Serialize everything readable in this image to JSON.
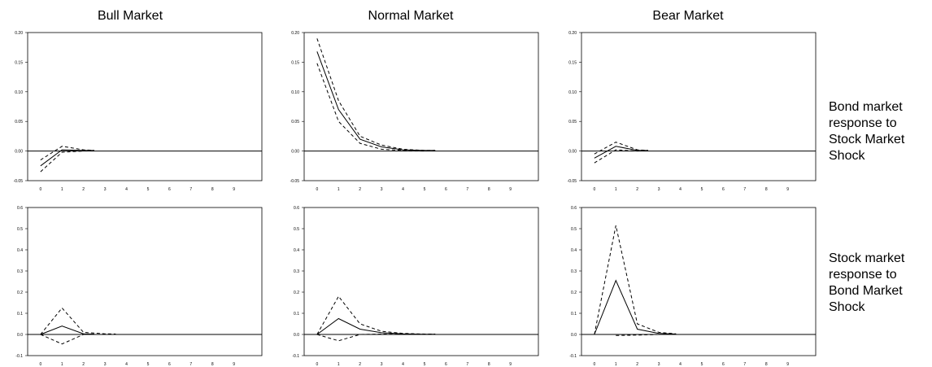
{
  "column_titles": [
    "Bull Market",
    "Normal Market",
    "Bear Market"
  ],
  "row_labels": [
    "Bond market\nresponse to\nStock Market\nShock",
    "Stock market\nresponse to\nBond Market\nShock"
  ],
  "chart_data": [
    {
      "type": "line",
      "title": "Bull Market",
      "row": 0,
      "col": 0,
      "x": [
        0,
        1,
        2,
        3,
        4,
        5,
        6,
        7,
        8,
        9
      ],
      "xlim": [
        -0.6,
        10.3
      ],
      "ylim": [
        -0.05,
        0.2
      ],
      "yticks": [
        -0.05,
        0.0,
        0.05,
        0.1,
        0.15,
        0.2
      ],
      "ytick_decimals": 2,
      "series": [
        {
          "style": "solid",
          "x": [
            0,
            1,
            2,
            2.5
          ],
          "values": [
            -0.025,
            0.002,
            0.001,
            0.001
          ]
        },
        {
          "style": "dashed",
          "x": [
            0,
            1,
            2,
            2.5
          ],
          "values": [
            -0.015,
            0.008,
            0.002,
            0.001
          ]
        },
        {
          "style": "dashed",
          "x": [
            0,
            1,
            2,
            2.5
          ],
          "values": [
            -0.035,
            -0.002,
            0.0,
            0.001
          ]
        }
      ]
    },
    {
      "type": "line",
      "title": "Normal Market",
      "row": 0,
      "col": 1,
      "x": [
        0,
        1,
        2,
        3,
        4,
        5,
        6,
        7,
        8,
        9
      ],
      "xlim": [
        -0.6,
        10.3
      ],
      "ylim": [
        -0.05,
        0.2
      ],
      "yticks": [
        -0.05,
        0.0,
        0.05,
        0.1,
        0.15,
        0.2
      ],
      "ytick_decimals": 2,
      "series": [
        {
          "style": "solid",
          "x": [
            0,
            1,
            2,
            3,
            4,
            5,
            5.5
          ],
          "values": [
            0.168,
            0.07,
            0.02,
            0.007,
            0.002,
            0.001,
            0.001
          ]
        },
        {
          "style": "dashed",
          "x": [
            0,
            1,
            2,
            3,
            4,
            5,
            5.5
          ],
          "values": [
            0.19,
            0.085,
            0.025,
            0.01,
            0.003,
            0.001,
            0.001
          ]
        },
        {
          "style": "dashed",
          "x": [
            0,
            1,
            2,
            3,
            4,
            5,
            5.5
          ],
          "values": [
            0.148,
            0.05,
            0.013,
            0.003,
            0.001,
            0.0,
            0.001
          ]
        }
      ]
    },
    {
      "type": "line",
      "title": "Bear Market",
      "row": 0,
      "col": 2,
      "x": [
        0,
        1,
        2,
        3,
        4,
        5,
        6,
        7,
        8,
        9
      ],
      "xlim": [
        -0.6,
        10.3
      ],
      "ylim": [
        -0.05,
        0.2
      ],
      "yticks": [
        -0.05,
        0.0,
        0.05,
        0.1,
        0.15,
        0.2
      ],
      "ytick_decimals": 2,
      "series": [
        {
          "style": "solid",
          "x": [
            0,
            1,
            2,
            2.5
          ],
          "values": [
            -0.012,
            0.008,
            0.001,
            0.001
          ]
        },
        {
          "style": "dashed",
          "x": [
            0,
            1,
            2,
            2.5
          ],
          "values": [
            -0.005,
            0.015,
            0.002,
            0.001
          ]
        },
        {
          "style": "dashed",
          "x": [
            0,
            1,
            2,
            2.5
          ],
          "values": [
            -0.02,
            0.002,
            0.0,
            0.001
          ]
        }
      ]
    },
    {
      "type": "line",
      "row": 1,
      "col": 0,
      "x": [
        0,
        1,
        2,
        3,
        4,
        5,
        6,
        7,
        8,
        9
      ],
      "xlim": [
        -0.6,
        10.3
      ],
      "ylim": [
        -0.1,
        0.6
      ],
      "yticks": [
        -0.1,
        0.0,
        0.1,
        0.2,
        0.3,
        0.4,
        0.5,
        0.6
      ],
      "ytick_decimals": 1,
      "series": [
        {
          "style": "solid",
          "x": [
            0,
            1,
            2,
            2.5
          ],
          "values": [
            0.0,
            0.04,
            0.003,
            0.002
          ]
        },
        {
          "style": "dashed",
          "x": [
            0,
            1,
            2,
            3,
            3.5
          ],
          "values": [
            0.0,
            0.125,
            0.01,
            0.003,
            0.002
          ]
        },
        {
          "style": "dashed",
          "x": [
            0,
            1,
            2,
            2.5
          ],
          "values": [
            0.0,
            -0.045,
            0.0,
            0.001
          ]
        }
      ]
    },
    {
      "type": "line",
      "row": 1,
      "col": 1,
      "x": [
        0,
        1,
        2,
        3,
        4,
        5,
        6,
        7,
        8,
        9
      ],
      "xlim": [
        -0.6,
        10.3
      ],
      "ylim": [
        -0.1,
        0.6
      ],
      "yticks": [
        -0.1,
        0.0,
        0.1,
        0.2,
        0.3,
        0.4,
        0.5,
        0.6
      ],
      "ytick_decimals": 1,
      "series": [
        {
          "style": "solid",
          "x": [
            0,
            1,
            2,
            3,
            4,
            5,
            5.5
          ],
          "values": [
            0.0,
            0.075,
            0.025,
            0.008,
            0.003,
            0.001,
            0.001
          ]
        },
        {
          "style": "dashed",
          "x": [
            0,
            1,
            2,
            3,
            4,
            5,
            5.5
          ],
          "values": [
            0.0,
            0.18,
            0.05,
            0.015,
            0.005,
            0.002,
            0.002
          ]
        },
        {
          "style": "dashed",
          "x": [
            0,
            1,
            2,
            3,
            4,
            5,
            5.5
          ],
          "values": [
            0.0,
            -0.03,
            0.0,
            0.002,
            0.001,
            0.0,
            0.001
          ]
        }
      ]
    },
    {
      "type": "line",
      "row": 1,
      "col": 2,
      "x": [
        0,
        1,
        2,
        3,
        4,
        5,
        6,
        7,
        8,
        9
      ],
      "xlim": [
        -0.6,
        10.3
      ],
      "ylim": [
        -0.1,
        0.6
      ],
      "yticks": [
        -0.1,
        0.0,
        0.1,
        0.2,
        0.3,
        0.4,
        0.5,
        0.6
      ],
      "ytick_decimals": 1,
      "series": [
        {
          "style": "solid",
          "x": [
            0,
            1,
            2,
            3,
            3.8
          ],
          "values": [
            0.0,
            0.255,
            0.025,
            0.005,
            0.002
          ]
        },
        {
          "style": "dashed",
          "x": [
            0,
            1,
            2,
            3,
            3.8
          ],
          "values": [
            0.0,
            0.515,
            0.05,
            0.01,
            0.003
          ]
        },
        {
          "style": "dashed",
          "x": [
            1,
            2,
            3,
            3.8
          ],
          "values": [
            -0.005,
            -0.003,
            0.0,
            0.001
          ]
        }
      ]
    }
  ]
}
